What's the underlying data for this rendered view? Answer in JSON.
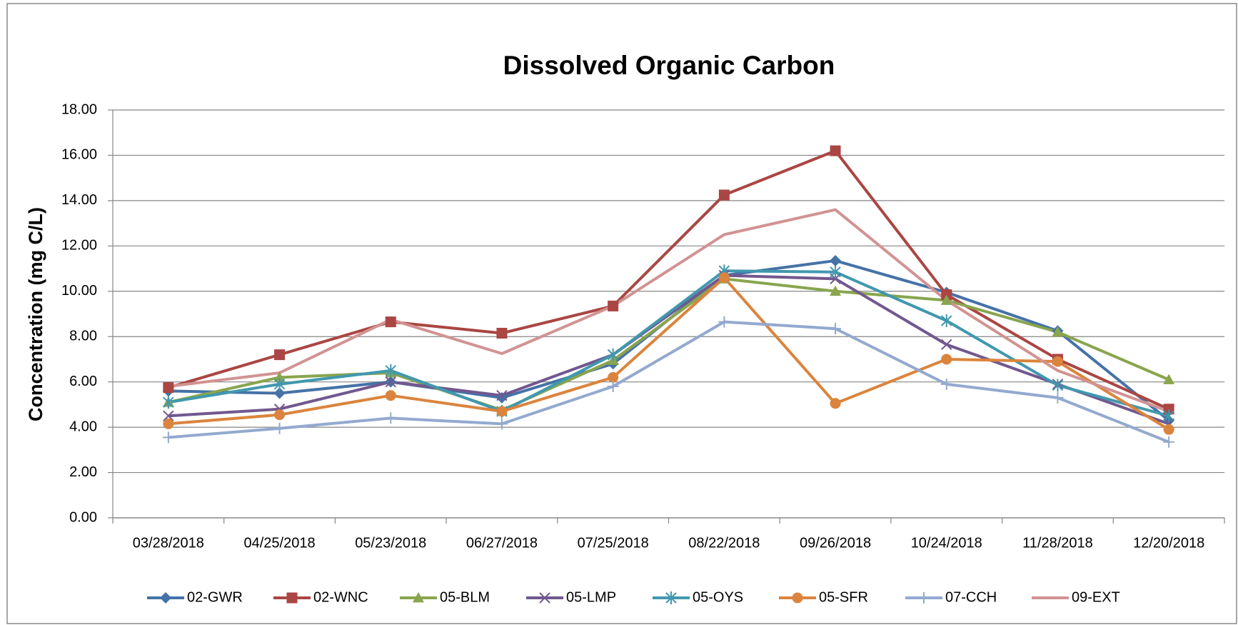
{
  "chart_data": {
    "type": "line",
    "title": "Dissolved Organic Carbon",
    "y_label": "Concentration (mg C/L)",
    "categories": [
      "03/28/2018",
      "04/25/2018",
      "05/23/2018",
      "06/27/2018",
      "07/25/2018",
      "08/22/2018",
      "09/26/2018",
      "10/24/2018",
      "11/28/2018",
      "12/20/2018"
    ],
    "series": [
      {
        "name": "02-GWR",
        "color": "#4572A7",
        "marker": "diamond",
        "values": [
          5.6,
          5.5,
          6.0,
          5.3,
          6.8,
          10.7,
          11.35,
          9.95,
          8.25,
          4.3
        ]
      },
      {
        "name": "02-WNC",
        "color": "#AA4643",
        "marker": "square",
        "values": [
          5.75,
          7.2,
          8.65,
          8.15,
          9.35,
          14.25,
          16.2,
          9.85,
          7.0,
          4.8
        ]
      },
      {
        "name": "05-BLM",
        "color": "#89A54E",
        "marker": "triangle",
        "values": [
          5.1,
          6.2,
          6.4,
          4.75,
          6.95,
          10.55,
          10.0,
          9.6,
          8.2,
          6.1
        ]
      },
      {
        "name": "05-LMP",
        "color": "#71588F",
        "marker": "x",
        "values": [
          4.5,
          4.8,
          6.0,
          5.4,
          7.2,
          10.7,
          10.55,
          7.65,
          5.9,
          4.15
        ]
      },
      {
        "name": "05-OYS",
        "color": "#4198AF",
        "marker": "star",
        "values": [
          5.1,
          5.9,
          6.5,
          4.7,
          7.2,
          10.9,
          10.85,
          8.7,
          5.85,
          4.5
        ]
      },
      {
        "name": "05-SFR",
        "color": "#DB843D",
        "marker": "circle",
        "values": [
          4.15,
          4.55,
          5.4,
          4.7,
          6.2,
          10.6,
          5.05,
          7.0,
          6.9,
          3.9
        ]
      },
      {
        "name": "07-CCH",
        "color": "#93A9CF",
        "marker": "plus",
        "values": [
          3.55,
          3.95,
          4.4,
          4.15,
          5.8,
          8.65,
          8.35,
          5.9,
          5.3,
          3.35
        ]
      },
      {
        "name": "09-EXT",
        "color": "#D19392",
        "marker": "none",
        "values": [
          5.8,
          6.4,
          8.75,
          7.25,
          9.35,
          12.5,
          13.6,
          9.6,
          6.5,
          4.7
        ]
      }
    ],
    "ylim": [
      0,
      18
    ],
    "yticks": [
      {
        "value": 0,
        "label": "0.00"
      },
      {
        "value": 2,
        "label": "2.00"
      },
      {
        "value": 4,
        "label": "4.00"
      },
      {
        "value": 6,
        "label": "6.00"
      },
      {
        "value": 8,
        "label": "8.00"
      },
      {
        "value": 10,
        "label": "10.00"
      },
      {
        "value": 12,
        "label": "12.00"
      },
      {
        "value": 14,
        "label": "14.00"
      },
      {
        "value": 16,
        "label": "16.00"
      },
      {
        "value": 18,
        "label": "18.00"
      }
    ],
    "grid": true,
    "legend": "bottom"
  }
}
